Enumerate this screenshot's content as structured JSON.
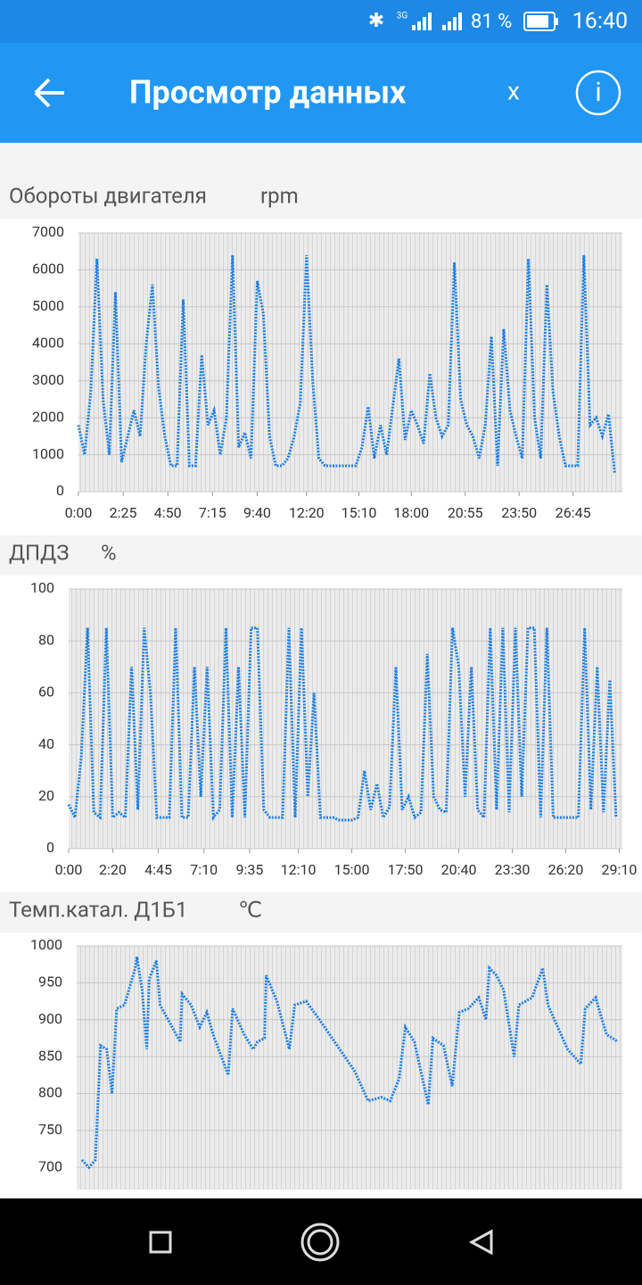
{
  "status_bar": {
    "network": "3G",
    "battery": "81 %",
    "time": "16:40"
  },
  "app_bar": {
    "title": "Просмотр данных",
    "close": "x",
    "info": "i"
  },
  "chart_data": [
    {
      "type": "line",
      "title": "Обороты двигателя",
      "unit": "rpm",
      "color": "#1e7fe6",
      "grid": true,
      "xlim": [
        0,
        1765
      ],
      "ylim": [
        0,
        7000
      ],
      "yticks": [
        0,
        1000,
        2000,
        3000,
        4000,
        5000,
        6000,
        7000
      ],
      "xticks": [
        {
          "value": 0,
          "label": "0:00"
        },
        {
          "value": 145,
          "label": "2:25"
        },
        {
          "value": 290,
          "label": "4:50"
        },
        {
          "value": 435,
          "label": "7:15"
        },
        {
          "value": 580,
          "label": "9:40"
        },
        {
          "value": 740,
          "label": "12:20"
        },
        {
          "value": 910,
          "label": "15:10"
        },
        {
          "value": 1080,
          "label": "18:00"
        },
        {
          "value": 1255,
          "label": "20:55"
        },
        {
          "value": 1430,
          "label": "23:50"
        },
        {
          "value": 1605,
          "label": "26:45"
        }
      ],
      "x": [
        0,
        20,
        40,
        60,
        80,
        100,
        120,
        140,
        160,
        180,
        200,
        220,
        240,
        260,
        280,
        300,
        320,
        340,
        360,
        380,
        400,
        420,
        440,
        460,
        480,
        500,
        520,
        540,
        560,
        580,
        600,
        620,
        640,
        660,
        680,
        700,
        720,
        740,
        760,
        780,
        800,
        820,
        840,
        860,
        880,
        900,
        920,
        940,
        960,
        980,
        1000,
        1020,
        1040,
        1060,
        1080,
        1100,
        1120,
        1140,
        1160,
        1180,
        1200,
        1220,
        1240,
        1260,
        1280,
        1300,
        1320,
        1340,
        1360,
        1380,
        1400,
        1420,
        1440,
        1460,
        1480,
        1500,
        1520,
        1540,
        1560,
        1580,
        1600,
        1620,
        1640,
        1660,
        1680,
        1700,
        1720,
        1740
      ],
      "values": [
        1800,
        1000,
        2700,
        6300,
        2500,
        1000,
        5400,
        800,
        1500,
        2200,
        1500,
        4000,
        5600,
        2800,
        1500,
        700,
        700,
        5200,
        700,
        700,
        3700,
        1800,
        2200,
        1000,
        2000,
        6400,
        1200,
        1600,
        900,
        5700,
        4800,
        1500,
        700,
        700,
        900,
        1500,
        2400,
        6400,
        3000,
        900,
        700,
        700,
        700,
        700,
        700,
        700,
        1200,
        2300,
        900,
        1800,
        1000,
        2300,
        3600,
        1400,
        2200,
        1800,
        1300,
        3200,
        2000,
        1500,
        1800,
        6200,
        2500,
        1800,
        1500,
        900,
        1800,
        4200,
        700,
        4400,
        2200,
        1500,
        900,
        6300,
        2000,
        900,
        5600,
        2700,
        1500,
        700,
        700,
        700,
        6400,
        1800,
        2000,
        1500,
        2100,
        500
      ]
    },
    {
      "type": "line",
      "title": "ДПДЗ",
      "unit": "%",
      "color": "#1e7fe6",
      "grid": true,
      "xlim": [
        0,
        1760
      ],
      "ylim": [
        0,
        100
      ],
      "yticks": [
        0,
        20,
        40,
        60,
        80,
        100
      ],
      "xticks": [
        {
          "value": 0,
          "label": "0:00"
        },
        {
          "value": 140,
          "label": "2:20"
        },
        {
          "value": 285,
          "label": "4:45"
        },
        {
          "value": 430,
          "label": "7:10"
        },
        {
          "value": 575,
          "label": "9:35"
        },
        {
          "value": 730,
          "label": "12:10"
        },
        {
          "value": 900,
          "label": "15:00"
        },
        {
          "value": 1070,
          "label": "17:50"
        },
        {
          "value": 1240,
          "label": "20:40"
        },
        {
          "value": 1410,
          "label": "23:30"
        },
        {
          "value": 1580,
          "label": "26:20"
        },
        {
          "value": 1750,
          "label": "29:10"
        }
      ],
      "x": [
        0,
        20,
        40,
        60,
        80,
        100,
        120,
        140,
        160,
        180,
        200,
        220,
        240,
        260,
        280,
        300,
        320,
        340,
        360,
        380,
        400,
        420,
        440,
        460,
        480,
        500,
        520,
        540,
        560,
        580,
        600,
        620,
        640,
        660,
        680,
        700,
        720,
        740,
        760,
        780,
        800,
        820,
        840,
        860,
        880,
        900,
        920,
        940,
        960,
        980,
        1000,
        1020,
        1040,
        1060,
        1080,
        1100,
        1120,
        1140,
        1160,
        1180,
        1200,
        1220,
        1240,
        1260,
        1280,
        1300,
        1320,
        1340,
        1360,
        1380,
        1400,
        1420,
        1440,
        1460,
        1480,
        1500,
        1520,
        1540,
        1560,
        1580,
        1600,
        1620,
        1640,
        1660,
        1680,
        1700,
        1720,
        1740
      ],
      "values": [
        17,
        12,
        35,
        85,
        14,
        12,
        85,
        12,
        14,
        12,
        70,
        15,
        85,
        60,
        12,
        12,
        12,
        85,
        12,
        12,
        70,
        20,
        70,
        12,
        15,
        85,
        12,
        70,
        12,
        85,
        85,
        15,
        12,
        12,
        12,
        85,
        12,
        85,
        20,
        60,
        12,
        12,
        12,
        11,
        11,
        11,
        12,
        30,
        15,
        25,
        12,
        16,
        70,
        15,
        20,
        12,
        14,
        75,
        20,
        15,
        14,
        85,
        70,
        20,
        70,
        15,
        12,
        85,
        15,
        85,
        14,
        85,
        20,
        85,
        85,
        12,
        85,
        12,
        12,
        12,
        12,
        12,
        85,
        15,
        70,
        14,
        65,
        12
      ]
    },
    {
      "type": "line",
      "title": "Темп.катал. Д1Б1",
      "unit": "℃",
      "color": "#1e7fe6",
      "grid": true,
      "xlim": [
        0,
        1760
      ],
      "ylim": [
        670,
        1000
      ],
      "yticks": [
        700,
        750,
        800,
        850,
        900,
        950,
        1000
      ],
      "x": [
        17,
        40,
        60,
        77,
        97,
        114,
        129,
        154,
        189,
        194,
        211,
        226,
        234,
        257,
        269,
        334,
        340,
        369,
        397,
        420,
        440,
        489,
        503,
        540,
        569,
        583,
        606,
        611,
        646,
        686,
        703,
        740,
        783,
        897,
        940,
        983,
        1011,
        1040,
        1060,
        1089,
        1134,
        1149,
        1183,
        1211,
        1234,
        1263,
        1297,
        1320,
        1331,
        1354,
        1377,
        1411,
        1426,
        1469,
        1503,
        1520,
        1583,
        1626,
        1640,
        1674,
        1691,
        1709,
        1746
      ],
      "values": [
        710,
        700,
        710,
        865,
        860,
        800,
        915,
        920,
        970,
        985,
        940,
        860,
        955,
        980,
        920,
        870,
        935,
        920,
        890,
        910,
        880,
        825,
        915,
        880,
        860,
        870,
        875,
        960,
        925,
        860,
        920,
        925,
        900,
        830,
        790,
        795,
        790,
        820,
        890,
        870,
        785,
        875,
        865,
        810,
        910,
        915,
        930,
        900,
        970,
        960,
        940,
        850,
        920,
        930,
        970,
        920,
        860,
        840,
        915,
        930,
        905,
        880,
        870
      ]
    }
  ]
}
